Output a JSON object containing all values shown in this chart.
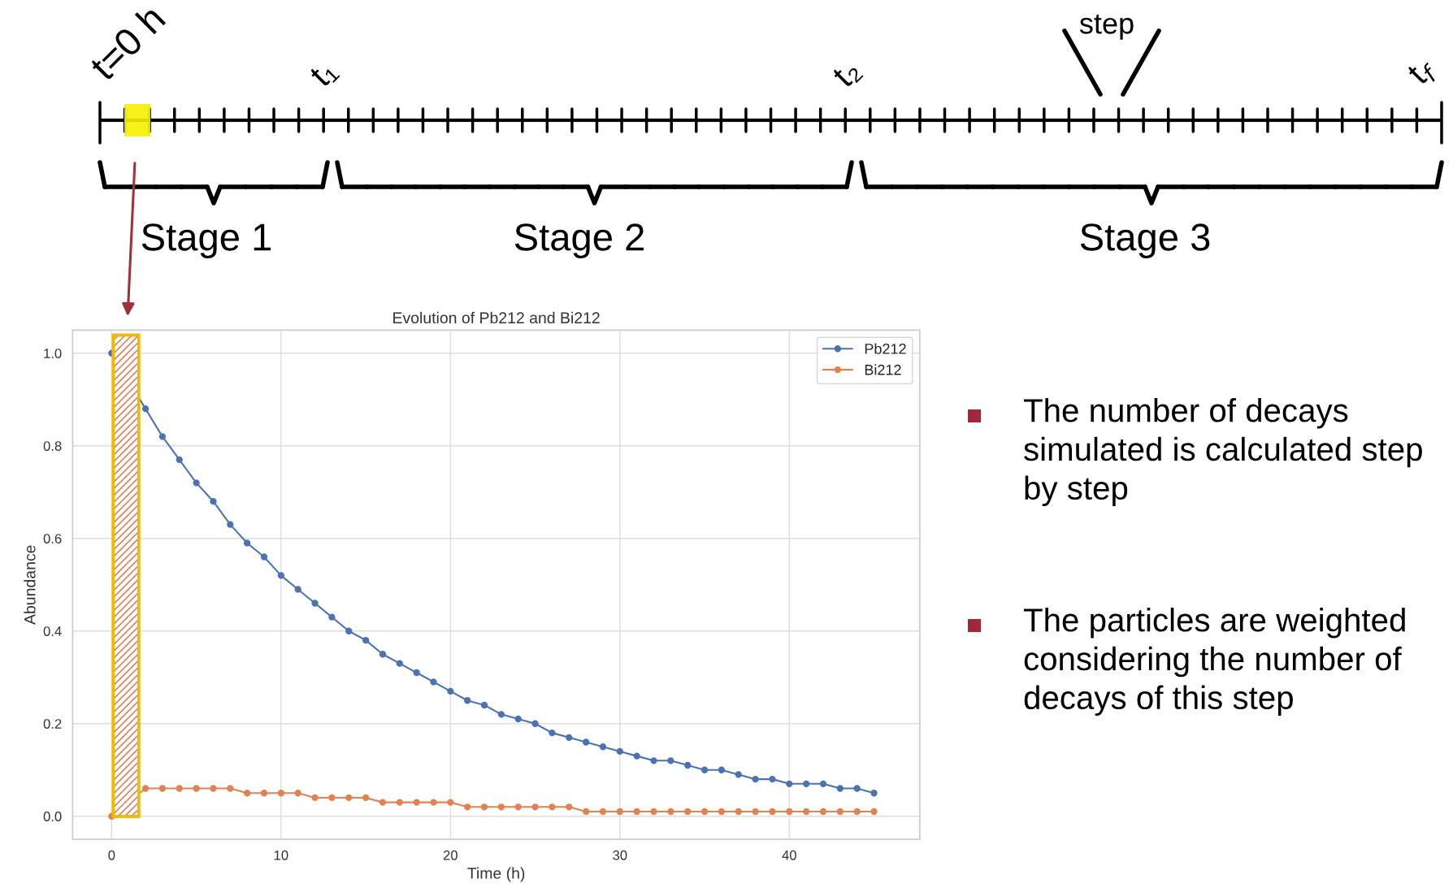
{
  "chart_data": {
    "type": "line",
    "title": "Evolution of Pb212 and Bi212",
    "xlabel": "Time (h)",
    "ylabel": "Abundance",
    "x": [
      0,
      2,
      3,
      4,
      5,
      6,
      7,
      8,
      9,
      10,
      11,
      12,
      13,
      14,
      15,
      16,
      17,
      18,
      19,
      20,
      21,
      22,
      23,
      24,
      25,
      26,
      27,
      28,
      29,
      30,
      31,
      32,
      33,
      34,
      35,
      36,
      37,
      38,
      39,
      40,
      41,
      42,
      43,
      44,
      45
    ],
    "series": [
      {
        "name": "Pb212",
        "color": "#4c72b0",
        "values": [
          1.0,
          0.88,
          0.82,
          0.77,
          0.72,
          0.68,
          0.63,
          0.59,
          0.56,
          0.52,
          0.49,
          0.46,
          0.43,
          0.4,
          0.38,
          0.35,
          0.33,
          0.31,
          0.29,
          0.27,
          0.25,
          0.24,
          0.22,
          0.21,
          0.2,
          0.18,
          0.17,
          0.16,
          0.15,
          0.14,
          0.13,
          0.12,
          0.12,
          0.11,
          0.1,
          0.1,
          0.09,
          0.08,
          0.08,
          0.07,
          0.07,
          0.07,
          0.06,
          0.06,
          0.05
        ]
      },
      {
        "name": "Bi212",
        "color": "#dd8452",
        "values": [
          0.0,
          0.06,
          0.06,
          0.06,
          0.06,
          0.06,
          0.06,
          0.05,
          0.05,
          0.05,
          0.05,
          0.04,
          0.04,
          0.04,
          0.04,
          0.03,
          0.03,
          0.03,
          0.03,
          0.03,
          0.02,
          0.02,
          0.02,
          0.02,
          0.02,
          0.02,
          0.02,
          0.01,
          0.01,
          0.01,
          0.01,
          0.01,
          0.01,
          0.01,
          0.01,
          0.01,
          0.01,
          0.01,
          0.01,
          0.01,
          0.01,
          0.01,
          0.01,
          0.01,
          0.01
        ]
      }
    ],
    "xlim": [
      -2.3,
      47.7
    ],
    "ylim": [
      -0.05,
      1.05
    ],
    "xticks": [
      0,
      10,
      20,
      30,
      40
    ],
    "yticks": [
      {
        "value": 0,
        "label": "0.0"
      },
      {
        "value": 0.2,
        "label": "0.2"
      },
      {
        "value": 0.4,
        "label": "0.4"
      },
      {
        "value": 0.6,
        "label": "0.6"
      },
      {
        "value": 0.8,
        "label": "0.8"
      },
      {
        "value": 1.0,
        "label": "1.0"
      }
    ],
    "bands": [
      {
        "axis": "x",
        "from": 0.1,
        "to": 1.6,
        "color": "#f5b800"
      }
    ],
    "grid": true,
    "legend": "top right",
    "marker": "circle",
    "line_style": "solid",
    "annotations": [
      "t=0 h",
      "t₁",
      "t₂",
      "t$_{f}$",
      "step",
      "Stage 1",
      "Stage 2",
      "Stage 3",
      "The number of decays simulated is calculated step by step",
      "The particles are weighted considering the number of decays of this step"
    ]
  }
}
